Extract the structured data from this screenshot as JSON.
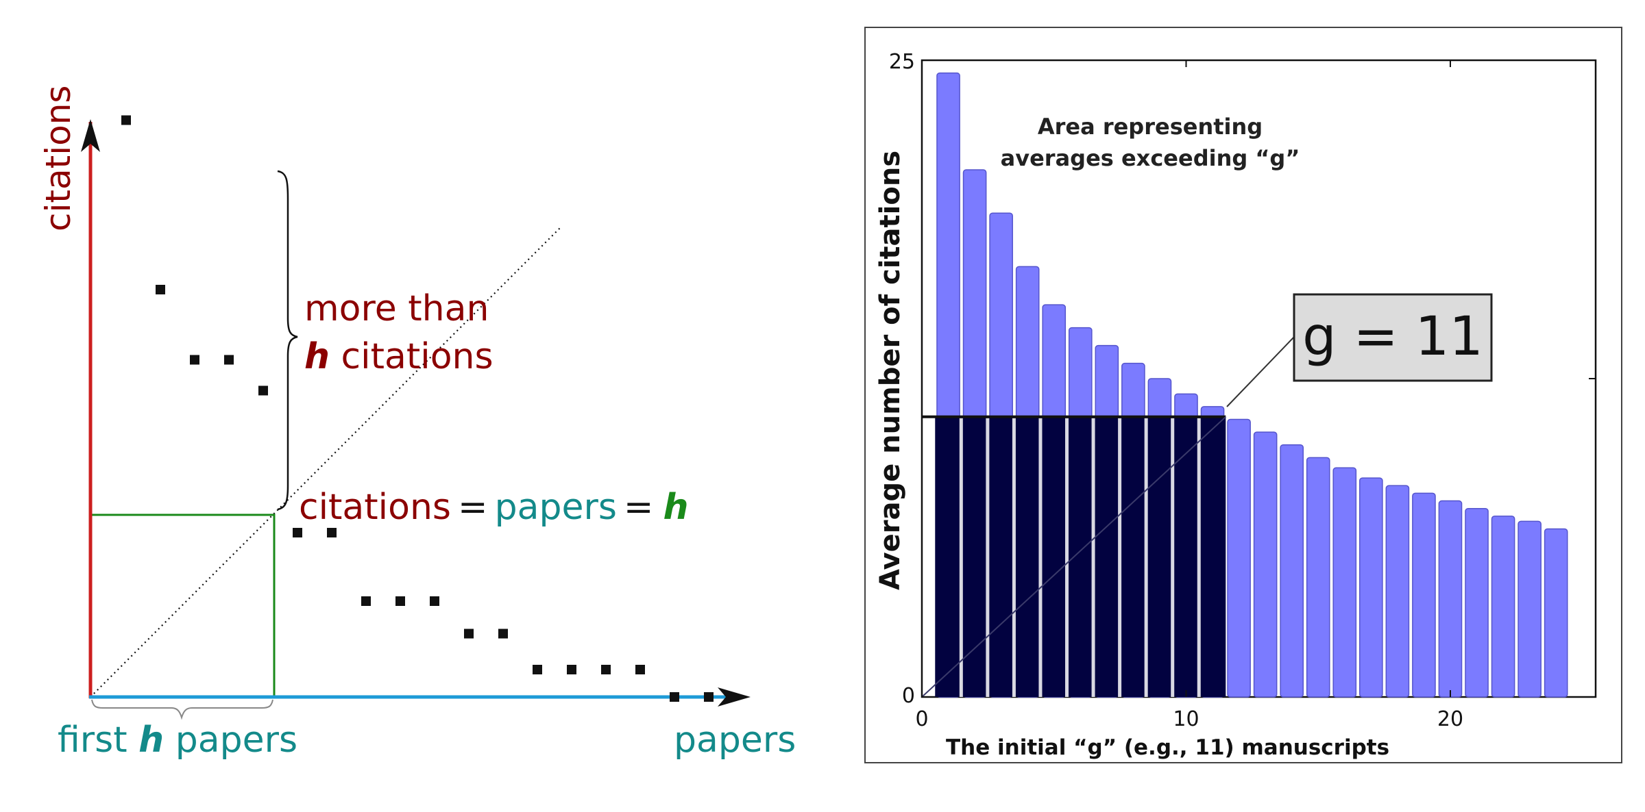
{
  "left_diagram": {
    "y_axis_label": "citations",
    "x_axis_label": "papers",
    "brace_label_line1": "more than",
    "brace_label_h": "h",
    "brace_label_line2_rest": " citations",
    "eq_citations": "citations",
    "eq_sign": "=",
    "eq_papers": "papers",
    "eq_h": "h",
    "first_label_pre": "first ",
    "first_label_h": "h",
    "first_label_post": " papers",
    "colors": {
      "citations": "#8b0000",
      "papers": "#138a8a",
      "h": "#1a8a1a",
      "y_axis": "#cc1f1f",
      "x_axis": "#1e9bd7",
      "square": "#111111"
    },
    "points": [
      {
        "paper": 1,
        "citations": 33.7
      },
      {
        "paper": 2,
        "citations": 23.8
      },
      {
        "paper": 3,
        "citations": 19.7
      },
      {
        "paper": 4,
        "citations": 19.7
      },
      {
        "paper": 5,
        "citations": 17.9
      },
      {
        "paper": 6,
        "citations": 9.6
      },
      {
        "paper": 7,
        "citations": 9.6
      },
      {
        "paper": 8,
        "citations": 5.6
      },
      {
        "paper": 9,
        "citations": 5.6
      },
      {
        "paper": 10,
        "citations": 5.6
      },
      {
        "paper": 11,
        "citations": 3.7
      },
      {
        "paper": 12,
        "citations": 3.7
      },
      {
        "paper": 13,
        "citations": 1.6
      },
      {
        "paper": 14,
        "citations": 1.6
      },
      {
        "paper": 15,
        "citations": 1.6
      },
      {
        "paper": 16,
        "citations": 1.6
      },
      {
        "paper": 17,
        "citations": 0
      },
      {
        "paper": 18,
        "citations": 0
      }
    ]
  },
  "chart_data": {
    "type": "bar",
    "title": "",
    "xlabel": "The initial “g” (e.g., 11) manuscripts",
    "ylabel": "Average number of citations",
    "xlim": [
      0,
      25.5
    ],
    "ylim": [
      0,
      25
    ],
    "x_ticks": [
      0,
      10,
      20
    ],
    "y_ticks": [
      0,
      25
    ],
    "y_minor_ticks": [
      12.5
    ],
    "x": [
      1,
      2,
      3,
      4,
      5,
      6,
      7,
      8,
      9,
      10,
      11,
      12,
      13,
      14,
      15,
      16,
      17,
      18,
      19,
      20,
      21,
      22,
      23,
      24
    ],
    "values": [
      24.5,
      20.7,
      19.0,
      16.9,
      15.4,
      14.5,
      13.8,
      13.1,
      12.5,
      11.9,
      11.4,
      10.9,
      10.4,
      9.9,
      9.4,
      9.0,
      8.6,
      8.3,
      8.0,
      7.7,
      7.4,
      7.1,
      6.9,
      6.6
    ],
    "g": 11,
    "annotation_box": "g = 11",
    "area_label_line1": "Area representing",
    "area_label_line2": "averages exceeding “g”",
    "colors": {
      "bar": "#7b7bff",
      "highlight": "#020240",
      "border": "#222222"
    }
  }
}
